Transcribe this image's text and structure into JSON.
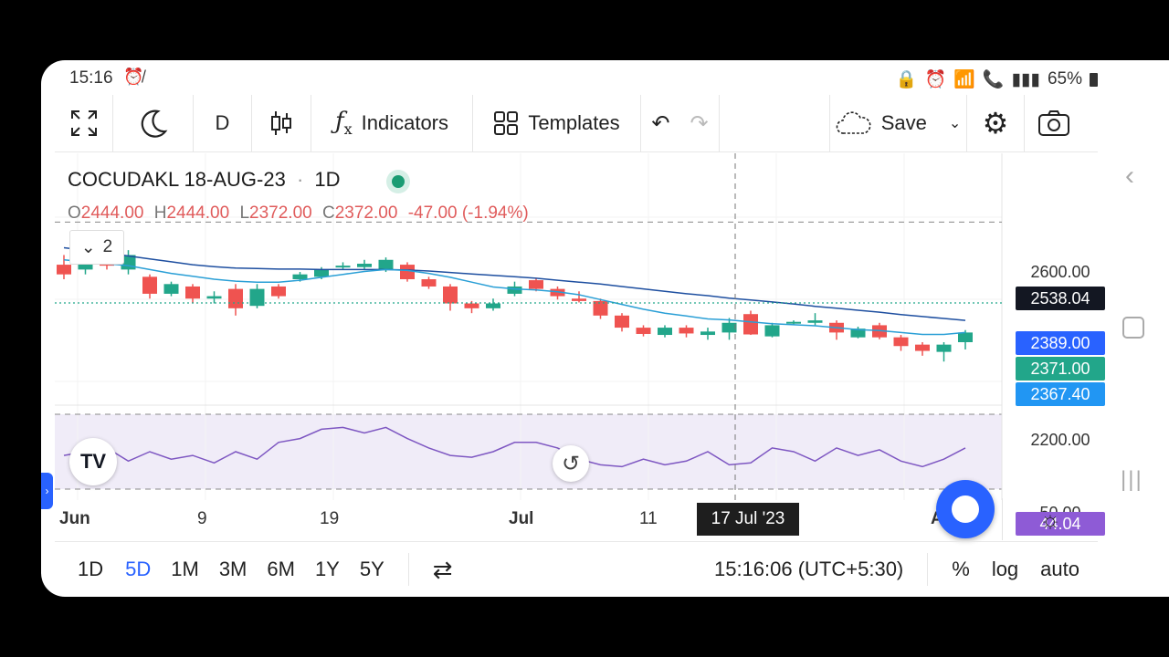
{
  "status_bar": {
    "time": "15:16",
    "left_icon": "alarm-off-icon",
    "right_icons": [
      "lock-icon",
      "alarm-icon",
      "wifi-icon",
      "lte1-icon",
      "signal1-icon",
      "call2-icon",
      "signal2-icon"
    ],
    "battery": "65%"
  },
  "toolbar": {
    "fullscreen_icon": "expand-icon",
    "theme_icon": "moon-icon",
    "interval": "D",
    "chart_type_icon": "candlestick-icon",
    "indicators_label": "Indicators",
    "templates_label": "Templates",
    "undo_icon": "undo-icon",
    "redo_icon": "redo-icon",
    "save_label": "Save",
    "settings_icon": "gear-icon",
    "snapshot_icon": "camera-icon"
  },
  "legend": {
    "symbol": "COCUDAKL 18-AUG-23",
    "separator": "·",
    "timeframe": "1D",
    "open_key": "O",
    "open": "2444.00",
    "high_key": "H",
    "high": "2444.00",
    "low_key": "L",
    "low": "2372.00",
    "close_key": "C",
    "close": "2372.00",
    "change": "-47.00 (-1.94%)",
    "collapsed_count": "2"
  },
  "price_axis": {
    "labels": [
      "2600.00",
      "2200.00"
    ],
    "crosshair_label": "2538.04",
    "ma_slow_label": "2389.00",
    "last_price_label": "2371.00",
    "ma_fast_label": "2367.40",
    "rsi_tick": "50.00",
    "rsi_label": "44.04"
  },
  "time_axis": {
    "ticks": [
      "Jun",
      "9",
      "19",
      "Jul",
      "11",
      "A"
    ],
    "crosshair_date": "17 Jul '23"
  },
  "bottom_bar": {
    "ranges": [
      "1D",
      "5D",
      "1M",
      "3M",
      "6M",
      "1Y",
      "5Y"
    ],
    "active_range": "5D",
    "time": "15:16:06 (UTC+5:30)",
    "percent": "%",
    "log": "log",
    "auto": "auto"
  },
  "colors": {
    "up": "#22a68a",
    "down": "#ef5350",
    "ma_slow": "#1e4fa0",
    "ma_fast": "#2a9fd6",
    "rsi": "#7e57c2",
    "accent": "#2962ff"
  },
  "chart_data": {
    "type": "candlestick",
    "symbol": "COCUDAKL 18-AUG-23",
    "ylim": [
      2160,
      2680
    ],
    "candles": [
      {
        "o": 2450,
        "c": 2430,
        "h": 2470,
        "l": 2420,
        "dir": "down"
      },
      {
        "o": 2440,
        "c": 2465,
        "h": 2480,
        "l": 2430,
        "dir": "up"
      },
      {
        "o": 2465,
        "c": 2448,
        "h": 2480,
        "l": 2440,
        "dir": "down"
      },
      {
        "o": 2440,
        "c": 2470,
        "h": 2480,
        "l": 2430,
        "dir": "up"
      },
      {
        "o": 2425,
        "c": 2390,
        "h": 2430,
        "l": 2380,
        "dir": "down"
      },
      {
        "o": 2390,
        "c": 2410,
        "h": 2415,
        "l": 2385,
        "dir": "up"
      },
      {
        "o": 2405,
        "c": 2380,
        "h": 2410,
        "l": 2370,
        "dir": "down"
      },
      {
        "o": 2380,
        "c": 2385,
        "h": 2395,
        "l": 2370,
        "dir": "up"
      },
      {
        "o": 2400,
        "c": 2360,
        "h": 2410,
        "l": 2345,
        "dir": "down"
      },
      {
        "o": 2365,
        "c": 2400,
        "h": 2410,
        "l": 2360,
        "dir": "up"
      },
      {
        "o": 2405,
        "c": 2385,
        "h": 2410,
        "l": 2380,
        "dir": "down"
      },
      {
        "o": 2420,
        "c": 2430,
        "h": 2435,
        "l": 2415,
        "dir": "up"
      },
      {
        "o": 2425,
        "c": 2440,
        "h": 2445,
        "l": 2420,
        "dir": "up"
      },
      {
        "o": 2445,
        "c": 2448,
        "h": 2455,
        "l": 2440,
        "dir": "up"
      },
      {
        "o": 2445,
        "c": 2452,
        "h": 2460,
        "l": 2440,
        "dir": "up"
      },
      {
        "o": 2440,
        "c": 2460,
        "h": 2465,
        "l": 2435,
        "dir": "up"
      },
      {
        "o": 2450,
        "c": 2420,
        "h": 2455,
        "l": 2415,
        "dir": "down"
      },
      {
        "o": 2420,
        "c": 2405,
        "h": 2425,
        "l": 2400,
        "dir": "down"
      },
      {
        "o": 2405,
        "c": 2370,
        "h": 2410,
        "l": 2355,
        "dir": "down"
      },
      {
        "o": 2370,
        "c": 2360,
        "h": 2375,
        "l": 2350,
        "dir": "down"
      },
      {
        "o": 2360,
        "c": 2370,
        "h": 2380,
        "l": 2355,
        "dir": "up"
      },
      {
        "o": 2390,
        "c": 2405,
        "h": 2415,
        "l": 2385,
        "dir": "up"
      },
      {
        "o": 2418,
        "c": 2400,
        "h": 2422,
        "l": 2395,
        "dir": "down"
      },
      {
        "o": 2400,
        "c": 2385,
        "h": 2405,
        "l": 2378,
        "dir": "down"
      },
      {
        "o": 2380,
        "c": 2375,
        "h": 2395,
        "l": 2372,
        "dir": "down"
      },
      {
        "o": 2375,
        "c": 2345,
        "h": 2380,
        "l": 2338,
        "dir": "down"
      },
      {
        "o": 2345,
        "c": 2320,
        "h": 2350,
        "l": 2312,
        "dir": "down"
      },
      {
        "o": 2320,
        "c": 2307,
        "h": 2325,
        "l": 2302,
        "dir": "down"
      },
      {
        "o": 2305,
        "c": 2320,
        "h": 2325,
        "l": 2300,
        "dir": "up"
      },
      {
        "o": 2320,
        "c": 2308,
        "h": 2325,
        "l": 2300,
        "dir": "down"
      },
      {
        "o": 2305,
        "c": 2312,
        "h": 2320,
        "l": 2295,
        "dir": "up"
      },
      {
        "o": 2310,
        "c": 2330,
        "h": 2340,
        "l": 2295,
        "dir": "up"
      },
      {
        "o": 2348,
        "c": 2306,
        "h": 2355,
        "l": 2305,
        "dir": "down"
      },
      {
        "o": 2302,
        "c": 2325,
        "h": 2330,
        "l": 2300,
        "dir": "up"
      },
      {
        "o": 2330,
        "c": 2332,
        "h": 2335,
        "l": 2325,
        "dir": "up"
      },
      {
        "o": 2330,
        "c": 2335,
        "h": 2350,
        "l": 2325,
        "dir": "up"
      },
      {
        "o": 2330,
        "c": 2310,
        "h": 2335,
        "l": 2295,
        "dir": "down"
      },
      {
        "o": 2300,
        "c": 2318,
        "h": 2322,
        "l": 2298,
        "dir": "up"
      },
      {
        "o": 2325,
        "c": 2300,
        "h": 2330,
        "l": 2296,
        "dir": "down"
      },
      {
        "o": 2300,
        "c": 2282,
        "h": 2305,
        "l": 2272,
        "dir": "down"
      },
      {
        "o": 2285,
        "c": 2272,
        "h": 2290,
        "l": 2262,
        "dir": "down"
      },
      {
        "o": 2270,
        "c": 2285,
        "h": 2290,
        "l": 2250,
        "dir": "up"
      },
      {
        "o": 2290,
        "c": 2310,
        "h": 2315,
        "l": 2275,
        "dir": "up"
      }
    ],
    "ma_slow": [
      2485,
      2480,
      2474,
      2468,
      2462,
      2456,
      2450,
      2446,
      2443,
      2442,
      2441,
      2441,
      2440,
      2440,
      2440,
      2440,
      2439,
      2437,
      2434,
      2431,
      2428,
      2425,
      2422,
      2418,
      2414,
      2410,
      2405,
      2400,
      2395,
      2390,
      2386,
      2381,
      2377,
      2373,
      2369,
      2364,
      2360,
      2356,
      2352,
      2347,
      2343,
      2339,
      2335
    ],
    "ma_fast": [
      2460,
      2456,
      2452,
      2448,
      2440,
      2432,
      2426,
      2420,
      2416,
      2414,
      2414,
      2418,
      2424,
      2430,
      2436,
      2440,
      2438,
      2432,
      2424,
      2414,
      2404,
      2400,
      2398,
      2394,
      2388,
      2378,
      2368,
      2358,
      2350,
      2344,
      2338,
      2336,
      2332,
      2328,
      2326,
      2324,
      2320,
      2316,
      2314,
      2310,
      2306,
      2306,
      2310
    ],
    "rsi": [
      48,
      50,
      52,
      45,
      50,
      46,
      48,
      44,
      50,
      46,
      55,
      57,
      62,
      63,
      60,
      63,
      57,
      52,
      48,
      47,
      50,
      55,
      55,
      52,
      46,
      43,
      42,
      46,
      43,
      45,
      50,
      43,
      44,
      52,
      50,
      45,
      52,
      48,
      51,
      45,
      42,
      46,
      52
    ],
    "last_price": 2371.0,
    "crosshair_price": 2538.04
  }
}
